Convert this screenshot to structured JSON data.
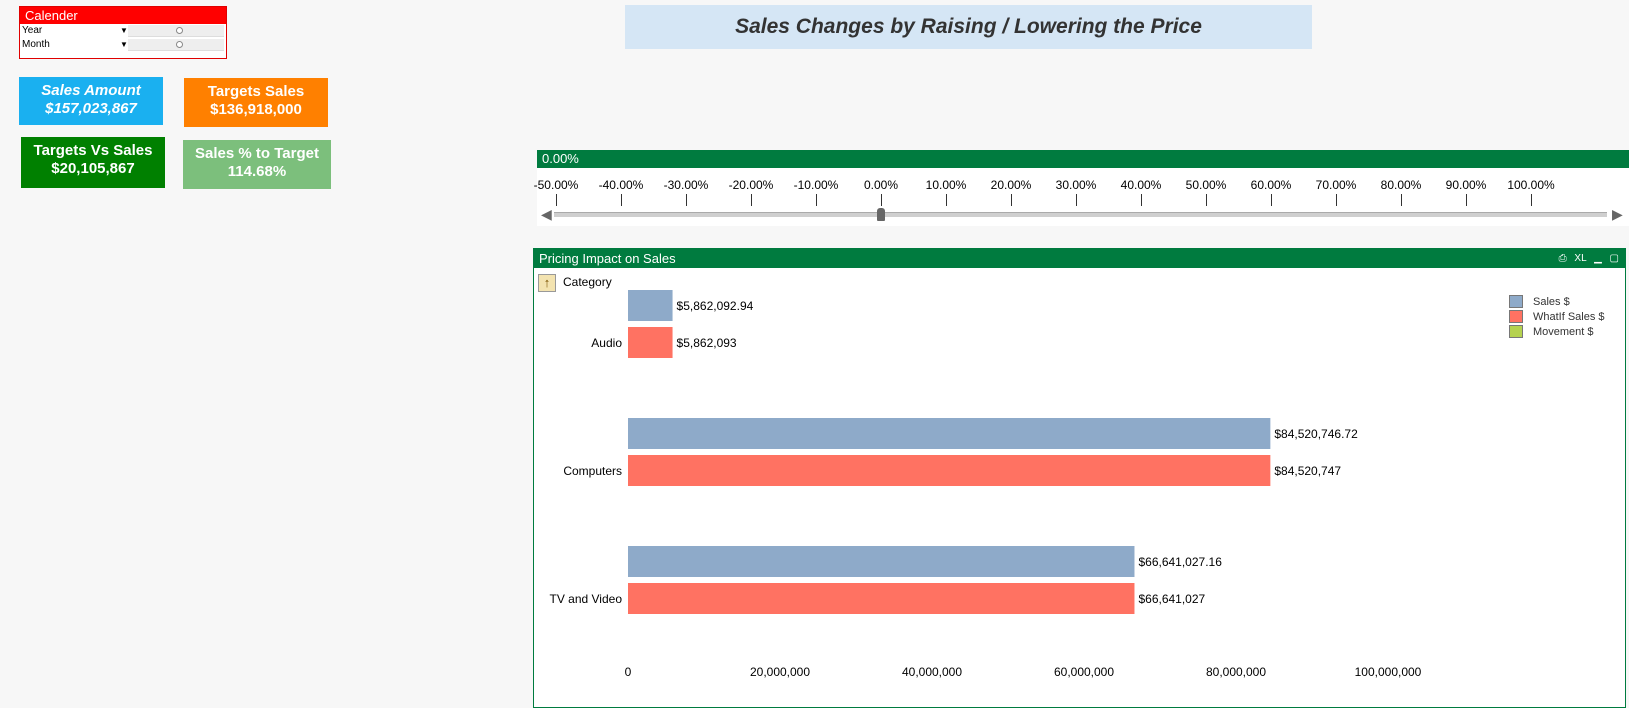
{
  "calendar": {
    "title": "Calender",
    "fields": [
      {
        "label": "Year"
      },
      {
        "label": "Month"
      }
    ]
  },
  "kpis": {
    "sales_amount": {
      "label": "Sales Amount",
      "value": "$157,023,867",
      "color": "#1ab0f0"
    },
    "targets_sales": {
      "label": "Targets Sales",
      "value": "$136,918,000",
      "color": "#ff8000"
    },
    "targets_vs_sales": {
      "label": "Targets Vs Sales",
      "value": "$20,105,867",
      "color": "#008000"
    },
    "sales_pct_target": {
      "label": "Sales % to Target",
      "value": "114.68%",
      "color": "#7cbf7c"
    }
  },
  "title": "Sales Changes by Raising / Lowering the Price",
  "price_slider": {
    "header_value": "0.00%",
    "current_value": 0.0,
    "ticks": [
      "-50.00%",
      "-40.00%",
      "-30.00%",
      "-20.00%",
      "-10.00%",
      "0.00%",
      "10.00%",
      "20.00%",
      "30.00%",
      "40.00%",
      "50.00%",
      "60.00%",
      "70.00%",
      "80.00%",
      "90.00%",
      "100.00%"
    ]
  },
  "chart_panel": {
    "title": "Pricing Impact on Sales",
    "header_icons": [
      "print-icon",
      "xl-icon",
      "minimize-icon",
      "maximize-icon"
    ],
    "dimension_label": "Category"
  },
  "chart_data": {
    "type": "bar",
    "orientation": "horizontal",
    "categories": [
      "Audio",
      "Computers",
      "TV and Video"
    ],
    "series": [
      {
        "name": "Sales $",
        "color": "#8eaac9",
        "values": [
          5862092.94,
          84520746.72,
          66641027.16
        ],
        "labels": [
          "$5,862,092.94",
          "$84,520,746.72",
          "$66,641,027.16"
        ]
      },
      {
        "name": "WhatIf Sales $",
        "color": "#ff7262",
        "values": [
          5862093,
          84520747,
          66641027
        ],
        "labels": [
          "$5,862,093",
          "$84,520,747",
          "$66,641,027"
        ]
      },
      {
        "name": "Movement $",
        "color": "#b5d24f",
        "values": [
          0,
          0,
          0
        ],
        "labels": [
          "",
          "",
          ""
        ]
      }
    ],
    "x_ticks": [
      "0",
      "20,000,000",
      "40,000,000",
      "60,000,000",
      "80,000,000",
      "100,000,000"
    ],
    "xlim": [
      0,
      100000000
    ],
    "legend_position": "top-right"
  }
}
